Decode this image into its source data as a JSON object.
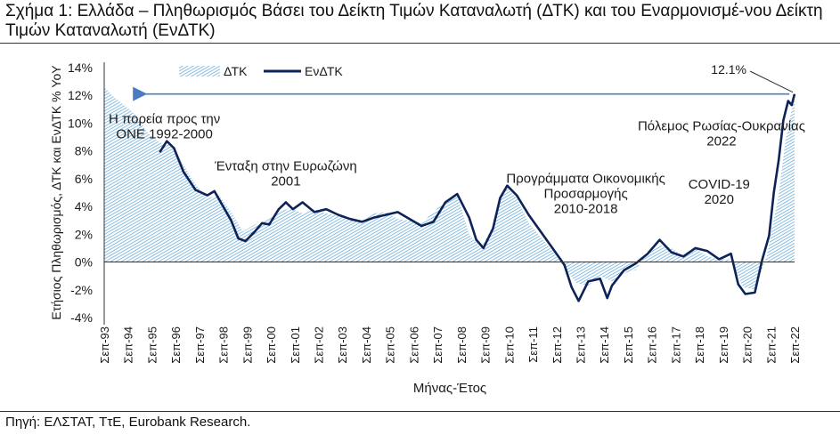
{
  "title": "Σχήμα 1: Ελλάδα – Πληθωρισμός Βάσει του Δείκτη Τιμών Καταναλωτή (ΔΤΚ) και του Εναρμονισμέ-νου Δείκτη Τιμών Καταναλωτή (ΕνΔΤΚ)",
  "source": "Πηγή: ΕΛΣΤΑΤ, ΤτΕ, Eurobank Research.",
  "colors": {
    "cpi_fill": "#6aaedc",
    "hicp_line": "#0d2357",
    "arrow": "#4a7cc2"
  },
  "chart_data": {
    "type": "area",
    "ylabel": "Ετήσιος Πληθωρισμός, ΔΤΚ και ΕνΔΤΚ % YoY",
    "xlabel": "Μήνας-Έτος",
    "ylim": [
      -4,
      14
    ],
    "yticks": [
      "-4%",
      "-2%",
      "0%",
      "2%",
      "4%",
      "6%",
      "8%",
      "10%",
      "12%",
      "14%"
    ],
    "xticks": [
      "Σεπ-93",
      "Σεπ-94",
      "Σεπ-95",
      "Σεπ-96",
      "Σεπ-97",
      "Σεπ-98",
      "Σεπ-99",
      "Σεπ-00",
      "Σεπ-01",
      "Σεπ-02",
      "Σεπ-03",
      "Σεπ-04",
      "Σεπ-05",
      "Σεπ-06",
      "Σεπ-07",
      "Σεπ-08",
      "Σεπ-09",
      "Σεπ-10",
      "Σεπ-11",
      "Σεπ-12",
      "Σεπ-13",
      "Σεπ-14",
      "Σεπ-15",
      "Σεπ-16",
      "Σεπ-17",
      "Σεπ-18",
      "Σεπ-19",
      "Σεπ-20",
      "Σεπ-21",
      "Σεπ-22"
    ],
    "legend": {
      "placement": "top-left",
      "entries": [
        "ΔΤΚ",
        "ΕνΔΤΚ"
      ]
    },
    "annotations": [
      {
        "lines": [
          "Η πορεία προς την",
          "ΟΝΕ 1992-2000"
        ],
        "x": 1996.2,
        "y": 10.0
      },
      {
        "lines": [
          "Ένταξη στην Ευρωζώνη",
          "2001"
        ],
        "x": 2001.3,
        "y": 6.6
      },
      {
        "lines": [
          "Προγράμματα Οικονομικής",
          "Προσαρμογής",
          "2010-2018"
        ],
        "x": 2013.9,
        "y": 5.7
      },
      {
        "lines": [
          "Πόλεμος Ρωσίας-Ουκρανίας",
          "2022"
        ],
        "x": 2019.6,
        "y": 9.5
      },
      {
        "lines": [
          "COVID-19",
          "2020"
        ],
        "x": 2019.5,
        "y": 5.3
      }
    ],
    "peak_label": {
      "text": "12.1%",
      "x": 2022.67,
      "y": 12.1
    },
    "series": [
      {
        "name": "ΔΤΚ",
        "style": "hatched-area",
        "points": [
          [
            1993.67,
            12.6
          ],
          [
            1994.0,
            12.0
          ],
          [
            1994.5,
            11.3
          ],
          [
            1995.0,
            10.6
          ],
          [
            1995.5,
            9.3
          ],
          [
            1996.0,
            8.6
          ],
          [
            1996.5,
            8.4
          ],
          [
            1997.0,
            7.0
          ],
          [
            1997.5,
            5.6
          ],
          [
            1998.0,
            4.6
          ],
          [
            1998.5,
            4.8
          ],
          [
            1999.0,
            3.6
          ],
          [
            1999.5,
            2.2
          ],
          [
            2000.0,
            2.7
          ],
          [
            2000.5,
            3.0
          ],
          [
            2001.0,
            3.6
          ],
          [
            2001.5,
            3.9
          ],
          [
            2002.0,
            3.5
          ],
          [
            2002.5,
            3.8
          ],
          [
            2003.0,
            3.5
          ],
          [
            2003.5,
            3.3
          ],
          [
            2004.0,
            3.0
          ],
          [
            2004.5,
            2.9
          ],
          [
            2005.0,
            3.5
          ],
          [
            2005.5,
            3.6
          ],
          [
            2006.0,
            3.1
          ],
          [
            2006.5,
            3.0
          ],
          [
            2007.0,
            2.8
          ],
          [
            2007.5,
            3.6
          ],
          [
            2008.0,
            4.4
          ],
          [
            2008.5,
            4.8
          ],
          [
            2009.0,
            2.0
          ],
          [
            2009.5,
            1.0
          ],
          [
            2010.0,
            2.6
          ],
          [
            2010.5,
            5.5
          ],
          [
            2011.0,
            4.6
          ],
          [
            2011.5,
            2.8
          ],
          [
            2012.0,
            1.8
          ],
          [
            2012.5,
            0.8
          ],
          [
            2013.0,
            -0.4
          ],
          [
            2013.5,
            -1.5
          ],
          [
            2014.0,
            -1.7
          ],
          [
            2014.5,
            -1.0
          ],
          [
            2015.0,
            -1.4
          ],
          [
            2015.5,
            -0.8
          ],
          [
            2016.0,
            -0.6
          ],
          [
            2016.5,
            0.8
          ],
          [
            2017.0,
            1.2
          ],
          [
            2017.5,
            1.0
          ],
          [
            2018.0,
            0.4
          ],
          [
            2018.5,
            1.0
          ],
          [
            2019.0,
            0.4
          ],
          [
            2019.5,
            0.2
          ],
          [
            2020.0,
            0.2
          ],
          [
            2020.5,
            -1.8
          ],
          [
            2021.0,
            -2.0
          ],
          [
            2021.5,
            0.4
          ],
          [
            2022.0,
            4.8
          ],
          [
            2022.3,
            8.9
          ],
          [
            2022.67,
            12.0
          ]
        ]
      },
      {
        "name": "ΕνΔΤΚ",
        "style": "line",
        "points": [
          [
            1996.0,
            7.9
          ],
          [
            1996.3,
            8.7
          ],
          [
            1996.6,
            8.2
          ],
          [
            1997.0,
            6.5
          ],
          [
            1997.5,
            5.2
          ],
          [
            1998.0,
            4.8
          ],
          [
            1998.3,
            5.1
          ],
          [
            1998.6,
            4.2
          ],
          [
            1999.0,
            3.0
          ],
          [
            1999.3,
            1.7
          ],
          [
            1999.6,
            1.5
          ],
          [
            2000.0,
            2.2
          ],
          [
            2000.3,
            2.8
          ],
          [
            2000.6,
            2.7
          ],
          [
            2001.0,
            3.8
          ],
          [
            2001.3,
            4.3
          ],
          [
            2001.6,
            3.8
          ],
          [
            2002.0,
            4.3
          ],
          [
            2002.5,
            3.6
          ],
          [
            2003.0,
            3.8
          ],
          [
            2003.5,
            3.4
          ],
          [
            2004.0,
            3.1
          ],
          [
            2004.5,
            2.9
          ],
          [
            2005.0,
            3.2
          ],
          [
            2005.5,
            3.4
          ],
          [
            2006.0,
            3.6
          ],
          [
            2006.5,
            3.1
          ],
          [
            2007.0,
            2.6
          ],
          [
            2007.5,
            2.9
          ],
          [
            2008.0,
            4.3
          ],
          [
            2008.5,
            4.9
          ],
          [
            2009.0,
            3.2
          ],
          [
            2009.3,
            1.6
          ],
          [
            2009.6,
            1.0
          ],
          [
            2010.0,
            2.4
          ],
          [
            2010.3,
            4.6
          ],
          [
            2010.6,
            5.5
          ],
          [
            2011.0,
            4.8
          ],
          [
            2011.5,
            3.4
          ],
          [
            2012.0,
            2.2
          ],
          [
            2012.5,
            1.0
          ],
          [
            2013.0,
            -0.2
          ],
          [
            2013.3,
            -1.8
          ],
          [
            2013.6,
            -2.8
          ],
          [
            2014.0,
            -1.4
          ],
          [
            2014.5,
            -1.2
          ],
          [
            2014.8,
            -2.6
          ],
          [
            2015.0,
            -1.7
          ],
          [
            2015.5,
            -0.6
          ],
          [
            2016.0,
            -0.1
          ],
          [
            2016.5,
            0.6
          ],
          [
            2017.0,
            1.6
          ],
          [
            2017.5,
            0.7
          ],
          [
            2018.0,
            0.4
          ],
          [
            2018.5,
            1.0
          ],
          [
            2019.0,
            0.8
          ],
          [
            2019.5,
            0.2
          ],
          [
            2020.0,
            0.6
          ],
          [
            2020.3,
            -1.6
          ],
          [
            2020.6,
            -2.3
          ],
          [
            2021.0,
            -2.2
          ],
          [
            2021.3,
            0.1
          ],
          [
            2021.6,
            1.9
          ],
          [
            2021.8,
            5.0
          ],
          [
            2022.0,
            7.3
          ],
          [
            2022.2,
            10.2
          ],
          [
            2022.4,
            11.6
          ],
          [
            2022.55,
            11.3
          ],
          [
            2022.67,
            12.1
          ]
        ]
      }
    ]
  }
}
